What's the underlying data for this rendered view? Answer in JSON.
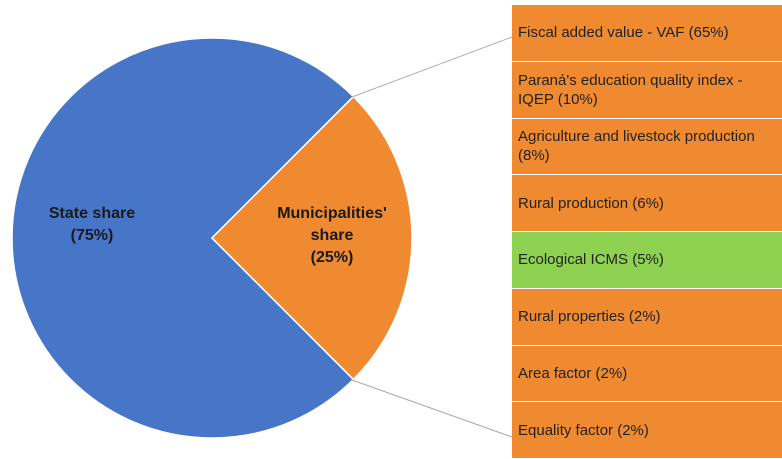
{
  "chart_data": {
    "type": "pie",
    "categories": [
      "Municipalities' share",
      "State share"
    ],
    "values": [
      25,
      75
    ],
    "value_labels": [
      "(25%)",
      "(75%)"
    ],
    "colors": [
      "#ef8a30",
      "#4775c8"
    ],
    "breakdown": {
      "items": [
        "Fiscal added value - VAF (65%)",
        "Paraná's education quality index - IQEP (10%)",
        "Agriculture and livestock production (8%)",
        "Rural production (6%)",
        "Ecological ICMS (5%)",
        "Rural properties (2%)",
        "Area factor (2%)",
        "Equality factor (2%)"
      ],
      "colors": [
        "#ef8a30",
        "#ef8a30",
        "#ef8a30",
        "#ef8a30",
        "#8fd150",
        "#ef8a30",
        "#ef8a30",
        "#ef8a30"
      ]
    }
  }
}
